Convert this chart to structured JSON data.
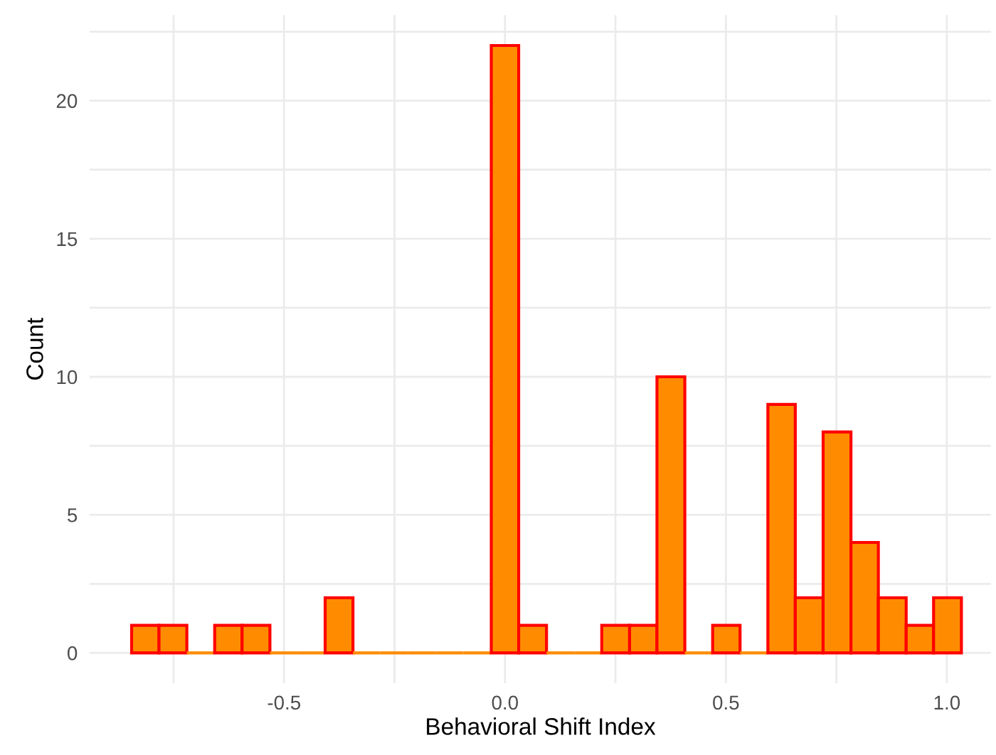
{
  "chart_data": {
    "type": "histogram",
    "xlabel": "Behavioral Shift Index",
    "ylabel": "Count",
    "bins": [
      -0.845,
      -0.783,
      -0.72,
      -0.657,
      -0.595,
      -0.532,
      -0.47,
      -0.407,
      -0.344,
      -0.282,
      -0.219,
      -0.157,
      -0.094,
      -0.031,
      0.031,
      0.094,
      0.157,
      0.219,
      0.282,
      0.344,
      0.407,
      0.47,
      0.532,
      0.595,
      0.657,
      0.72,
      0.783,
      0.845,
      0.908,
      0.97,
      1.033
    ],
    "values": [
      1,
      1,
      0,
      1,
      1,
      0,
      0,
      2,
      0,
      0,
      0,
      0,
      0,
      22,
      1,
      0,
      0,
      1,
      1,
      10,
      0,
      1,
      0,
      9,
      2,
      8,
      4,
      2,
      1,
      2
    ],
    "color": "#ff8c00",
    "xlim": [
      -0.94,
      1.1
    ],
    "ylim": [
      -1.1,
      23.1
    ],
    "xticks": [
      {
        "value": -0.75,
        "label": null
      },
      -0.5,
      {
        "value": -0.25,
        "label": null
      },
      {
        "value": 0,
        "label": "0.0"
      },
      {
        "value": 0.25,
        "label": null
      },
      0.5,
      {
        "value": 0.75,
        "label": null
      },
      {
        "value": 1,
        "label": "1.0"
      }
    ],
    "yticks": [
      0,
      {
        "value": 2.5,
        "label": null
      },
      5,
      {
        "value": 7.5,
        "label": null
      },
      10,
      {
        "value": 12.5,
        "label": null
      },
      15,
      {
        "value": 17.5,
        "label": null
      },
      20,
      {
        "value": 22.5,
        "label": null
      }
    ],
    "grid": true
  }
}
